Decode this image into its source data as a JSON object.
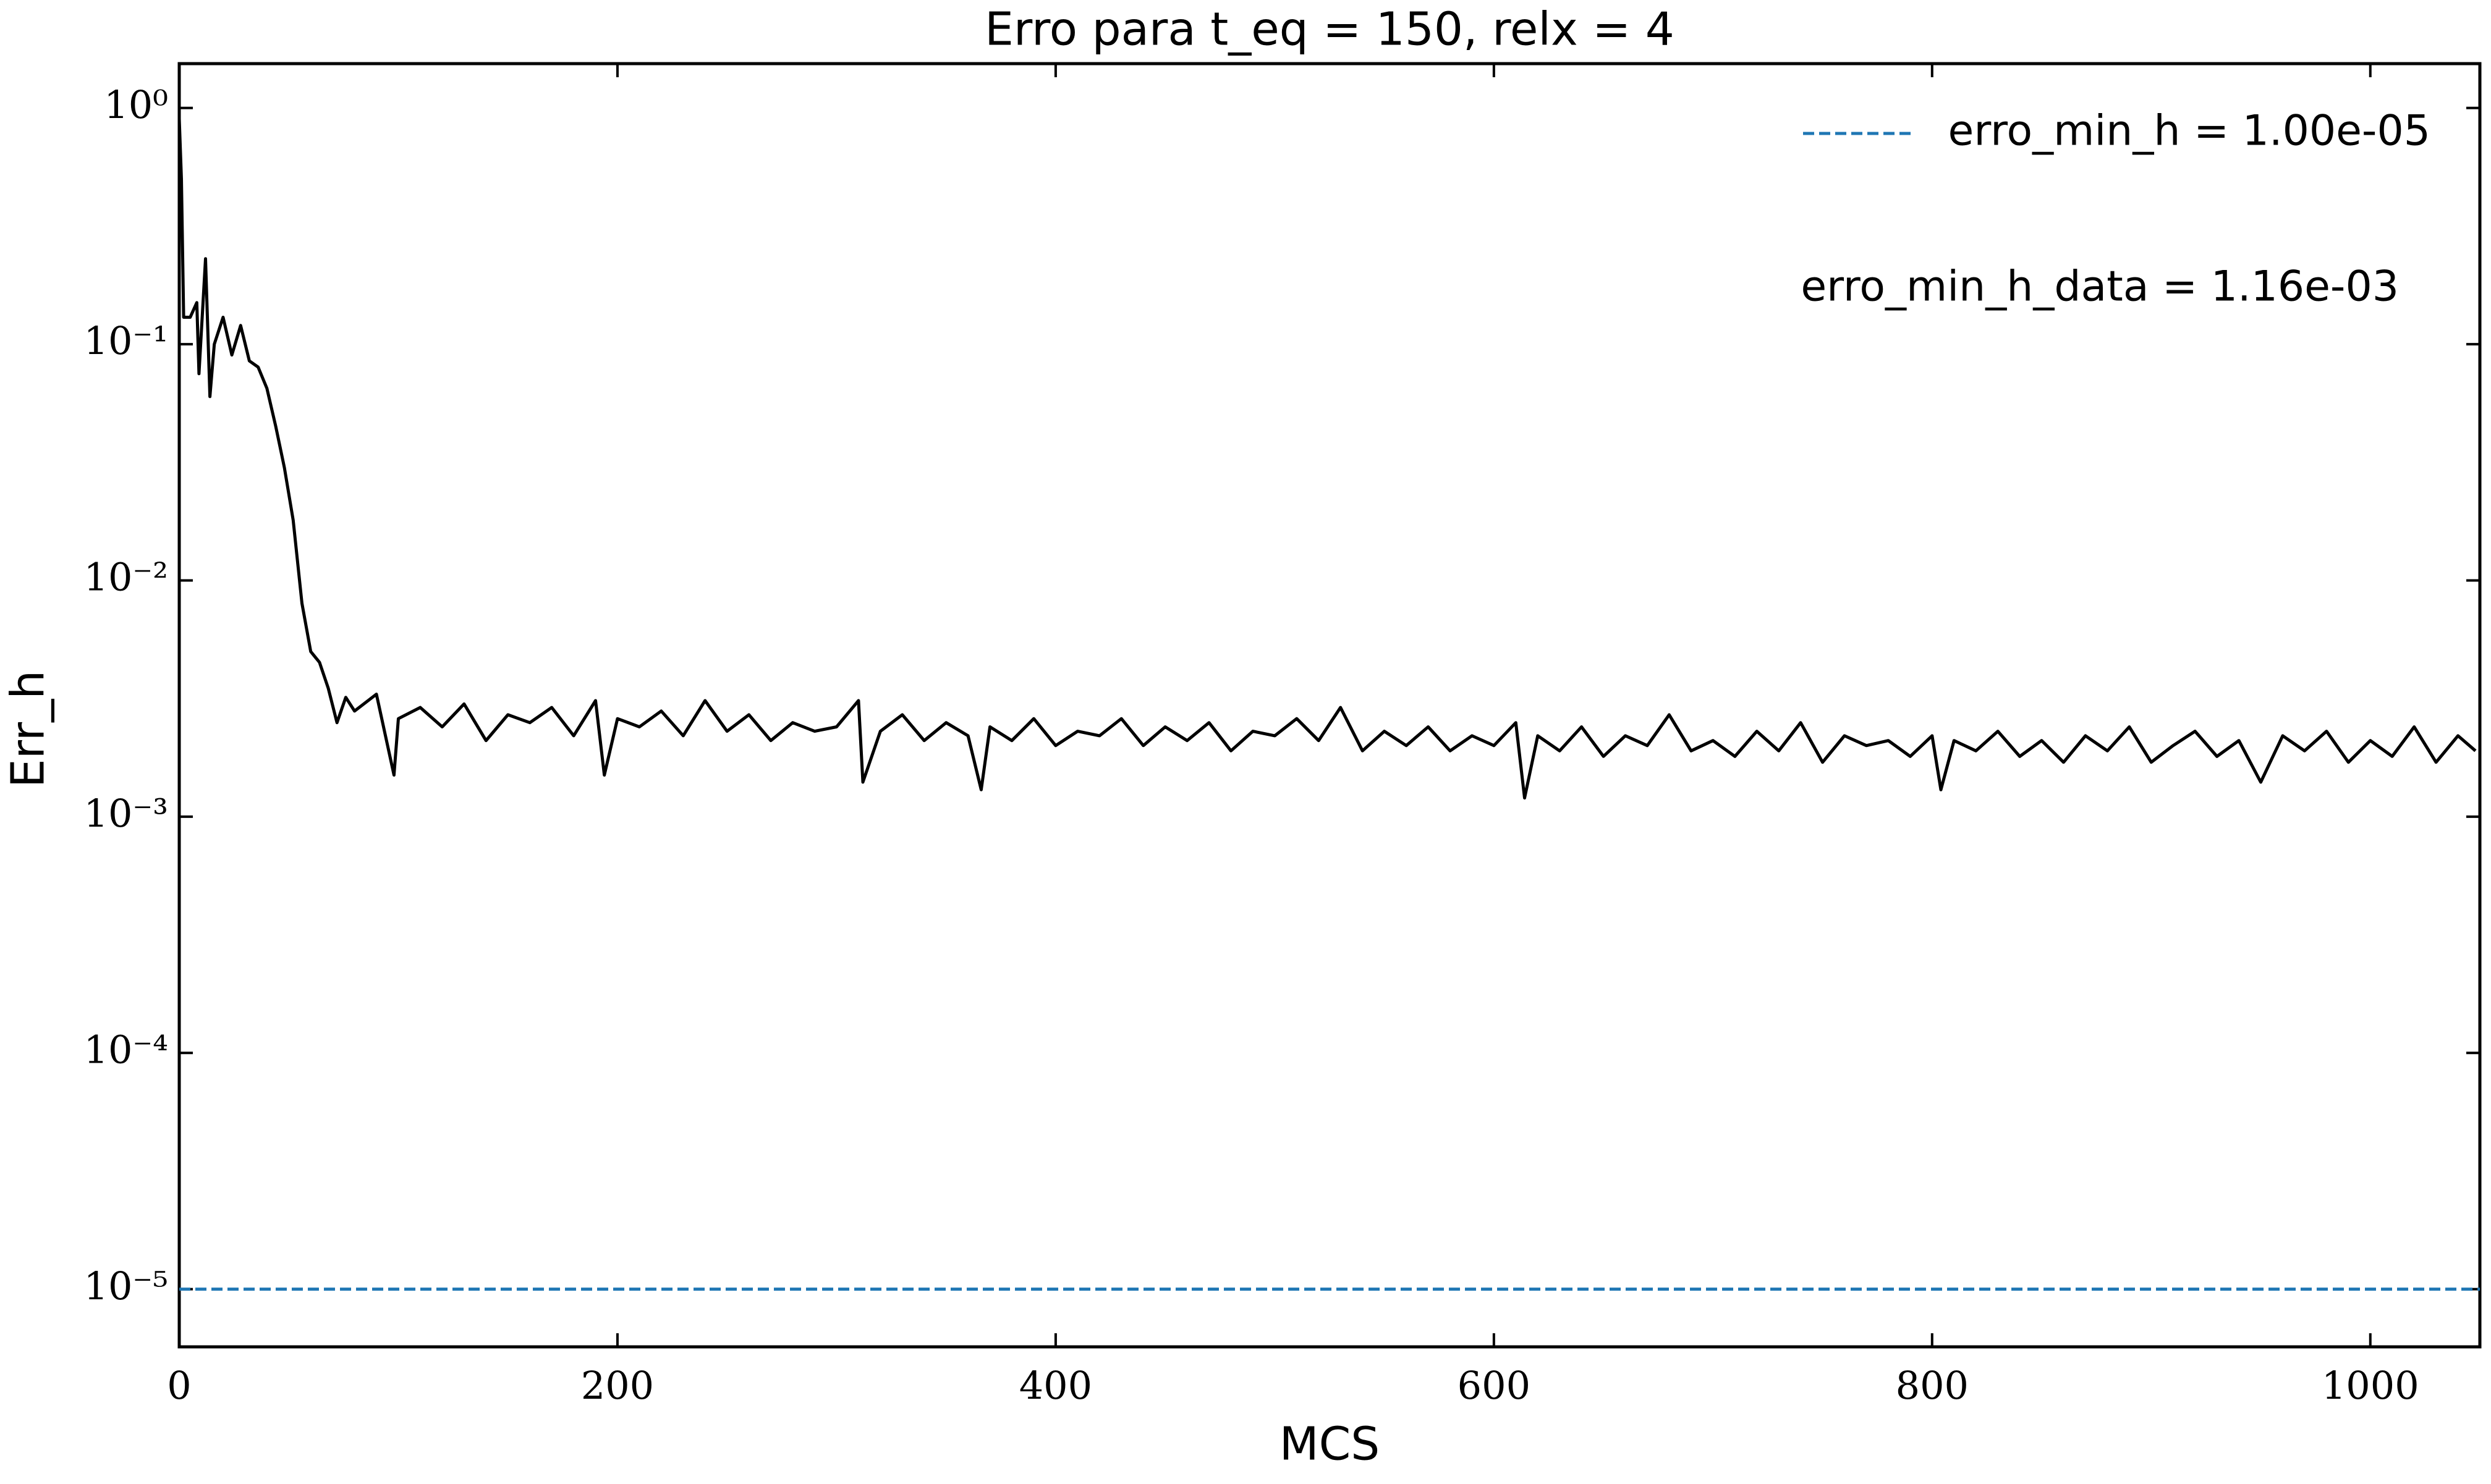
{
  "chart_data": {
    "type": "line",
    "title": "Erro para t_eq = 150, relx = 4",
    "xlabel": "MCS",
    "ylabel": "Err_h",
    "yscale": "log",
    "xlim": [
      0,
      1050
    ],
    "ylim": [
      5.7e-06,
      1.54
    ],
    "xticks": [
      0,
      200,
      400,
      600,
      800,
      1000
    ],
    "yticks": [
      {
        "value": 1,
        "label": "10⁰"
      },
      {
        "value": 0.1,
        "label": "10⁻¹"
      },
      {
        "value": 0.01,
        "label": "10⁻²"
      },
      {
        "value": 0.001,
        "label": "10⁻³"
      },
      {
        "value": 0.0001,
        "label": "10⁻⁴"
      },
      {
        "value": 1e-05,
        "label": "10⁻⁵"
      }
    ],
    "legend": "upper right",
    "annotation": "erro_min_h_data = 1.16e-03",
    "hlines": [
      {
        "name": "erro_min_h = 1.00e-05",
        "value": 1e-05,
        "color": "#1f77b4",
        "style": "dashed"
      }
    ],
    "x": [
      0,
      1,
      2,
      5,
      8,
      9,
      12,
      14,
      16,
      20,
      24,
      28,
      32,
      36,
      40,
      44,
      48,
      52,
      56,
      60,
      64,
      68,
      72,
      76,
      80,
      90,
      98,
      100,
      110,
      120,
      130,
      140,
      150,
      160,
      170,
      180,
      190,
      194,
      200,
      210,
      220,
      230,
      240,
      250,
      260,
      270,
      280,
      290,
      300,
      310,
      312,
      320,
      330,
      340,
      350,
      360,
      366,
      370,
      380,
      390,
      400,
      410,
      420,
      430,
      440,
      450,
      460,
      470,
      480,
      490,
      500,
      510,
      520,
      530,
      540,
      550,
      560,
      570,
      580,
      590,
      600,
      610,
      614,
      620,
      630,
      640,
      650,
      660,
      670,
      680,
      690,
      700,
      710,
      720,
      730,
      740,
      750,
      760,
      770,
      780,
      790,
      800,
      804,
      810,
      820,
      830,
      840,
      850,
      860,
      870,
      880,
      890,
      900,
      910,
      920,
      930,
      940,
      950,
      960,
      970,
      980,
      990,
      1000,
      1010,
      1020,
      1030,
      1040,
      1048
    ],
    "series": [
      {
        "color": "#000000",
        "values": [
          0.9,
          0.5,
          0.13,
          0.13,
          0.15,
          0.075,
          0.23,
          0.06,
          0.1,
          0.13,
          0.09,
          0.12,
          0.085,
          0.08,
          0.065,
          0.045,
          0.03,
          0.018,
          0.008,
          0.005,
          0.0045,
          0.0035,
          0.0025,
          0.0032,
          0.0028,
          0.0033,
          0.0015,
          0.0026,
          0.0029,
          0.0024,
          0.003,
          0.0021,
          0.0027,
          0.0025,
          0.0029,
          0.0022,
          0.0031,
          0.0015,
          0.0026,
          0.0024,
          0.0028,
          0.0022,
          0.0031,
          0.0023,
          0.0027,
          0.0021,
          0.0025,
          0.0023,
          0.0024,
          0.0031,
          0.0014,
          0.0023,
          0.0027,
          0.0021,
          0.0025,
          0.0022,
          0.0013,
          0.0024,
          0.0021,
          0.0026,
          0.002,
          0.0023,
          0.0022,
          0.0026,
          0.002,
          0.0024,
          0.0021,
          0.0025,
          0.0019,
          0.0023,
          0.0022,
          0.0026,
          0.0021,
          0.0029,
          0.0019,
          0.0023,
          0.002,
          0.0024,
          0.0019,
          0.0022,
          0.002,
          0.0025,
          0.0012,
          0.0022,
          0.0019,
          0.0024,
          0.0018,
          0.0022,
          0.002,
          0.0027,
          0.0019,
          0.0021,
          0.0018,
          0.0023,
          0.0019,
          0.0025,
          0.0017,
          0.0022,
          0.002,
          0.0021,
          0.0018,
          0.0022,
          0.0013,
          0.0021,
          0.0019,
          0.0023,
          0.0018,
          0.0021,
          0.0017,
          0.0022,
          0.0019,
          0.0024,
          0.0017,
          0.002,
          0.0023,
          0.0018,
          0.0021,
          0.0014,
          0.0022,
          0.0019,
          0.0023,
          0.0017,
          0.0021,
          0.0018,
          0.0024,
          0.0017,
          0.0022,
          0.0019
        ]
      }
    ]
  }
}
